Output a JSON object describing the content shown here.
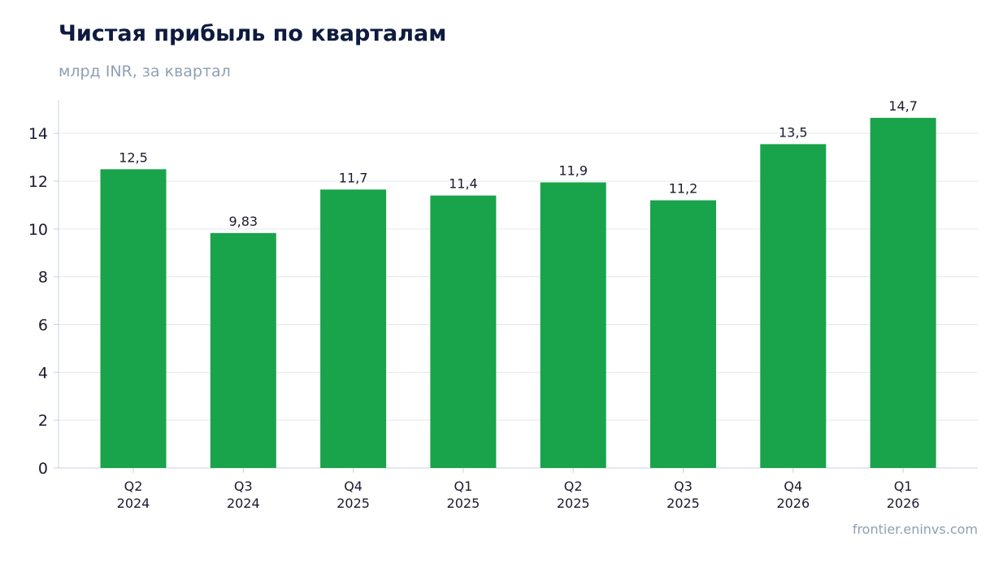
{
  "header": {
    "title": "Чистая прибыль по кварталам",
    "subtitle": "млрд INR, за квартал"
  },
  "footer": {
    "source": "frontier.eninvs.com"
  },
  "colors": {
    "bar": "#19a34a",
    "grid": "#e3e8ef",
    "axis": "#c9d1dc",
    "text": "#1a1a2e"
  },
  "chart_data": {
    "type": "bar",
    "title": "Чистая прибыль по кварталам",
    "subtitle": "млрд INR, за квартал",
    "categories": [
      [
        "Q2",
        "2024"
      ],
      [
        "Q3",
        "2024"
      ],
      [
        "Q4",
        "2025"
      ],
      [
        "Q1",
        "2025"
      ],
      [
        "Q2",
        "2025"
      ],
      [
        "Q3",
        "2025"
      ],
      [
        "Q4",
        "2026"
      ],
      [
        "Q1",
        "2026"
      ]
    ],
    "values": [
      12.5,
      9.83,
      11.65,
      11.4,
      11.95,
      11.2,
      13.55,
      14.65
    ],
    "data_labels": [
      "12,5",
      "9,83",
      "11,7",
      "11,4",
      "11,9",
      "11,2",
      "13,5",
      "14,7"
    ],
    "ylim": [
      0,
      15.4
    ],
    "yticks": [
      0,
      2,
      4,
      6,
      8,
      10,
      12,
      14
    ],
    "grid": true,
    "legend": false
  }
}
